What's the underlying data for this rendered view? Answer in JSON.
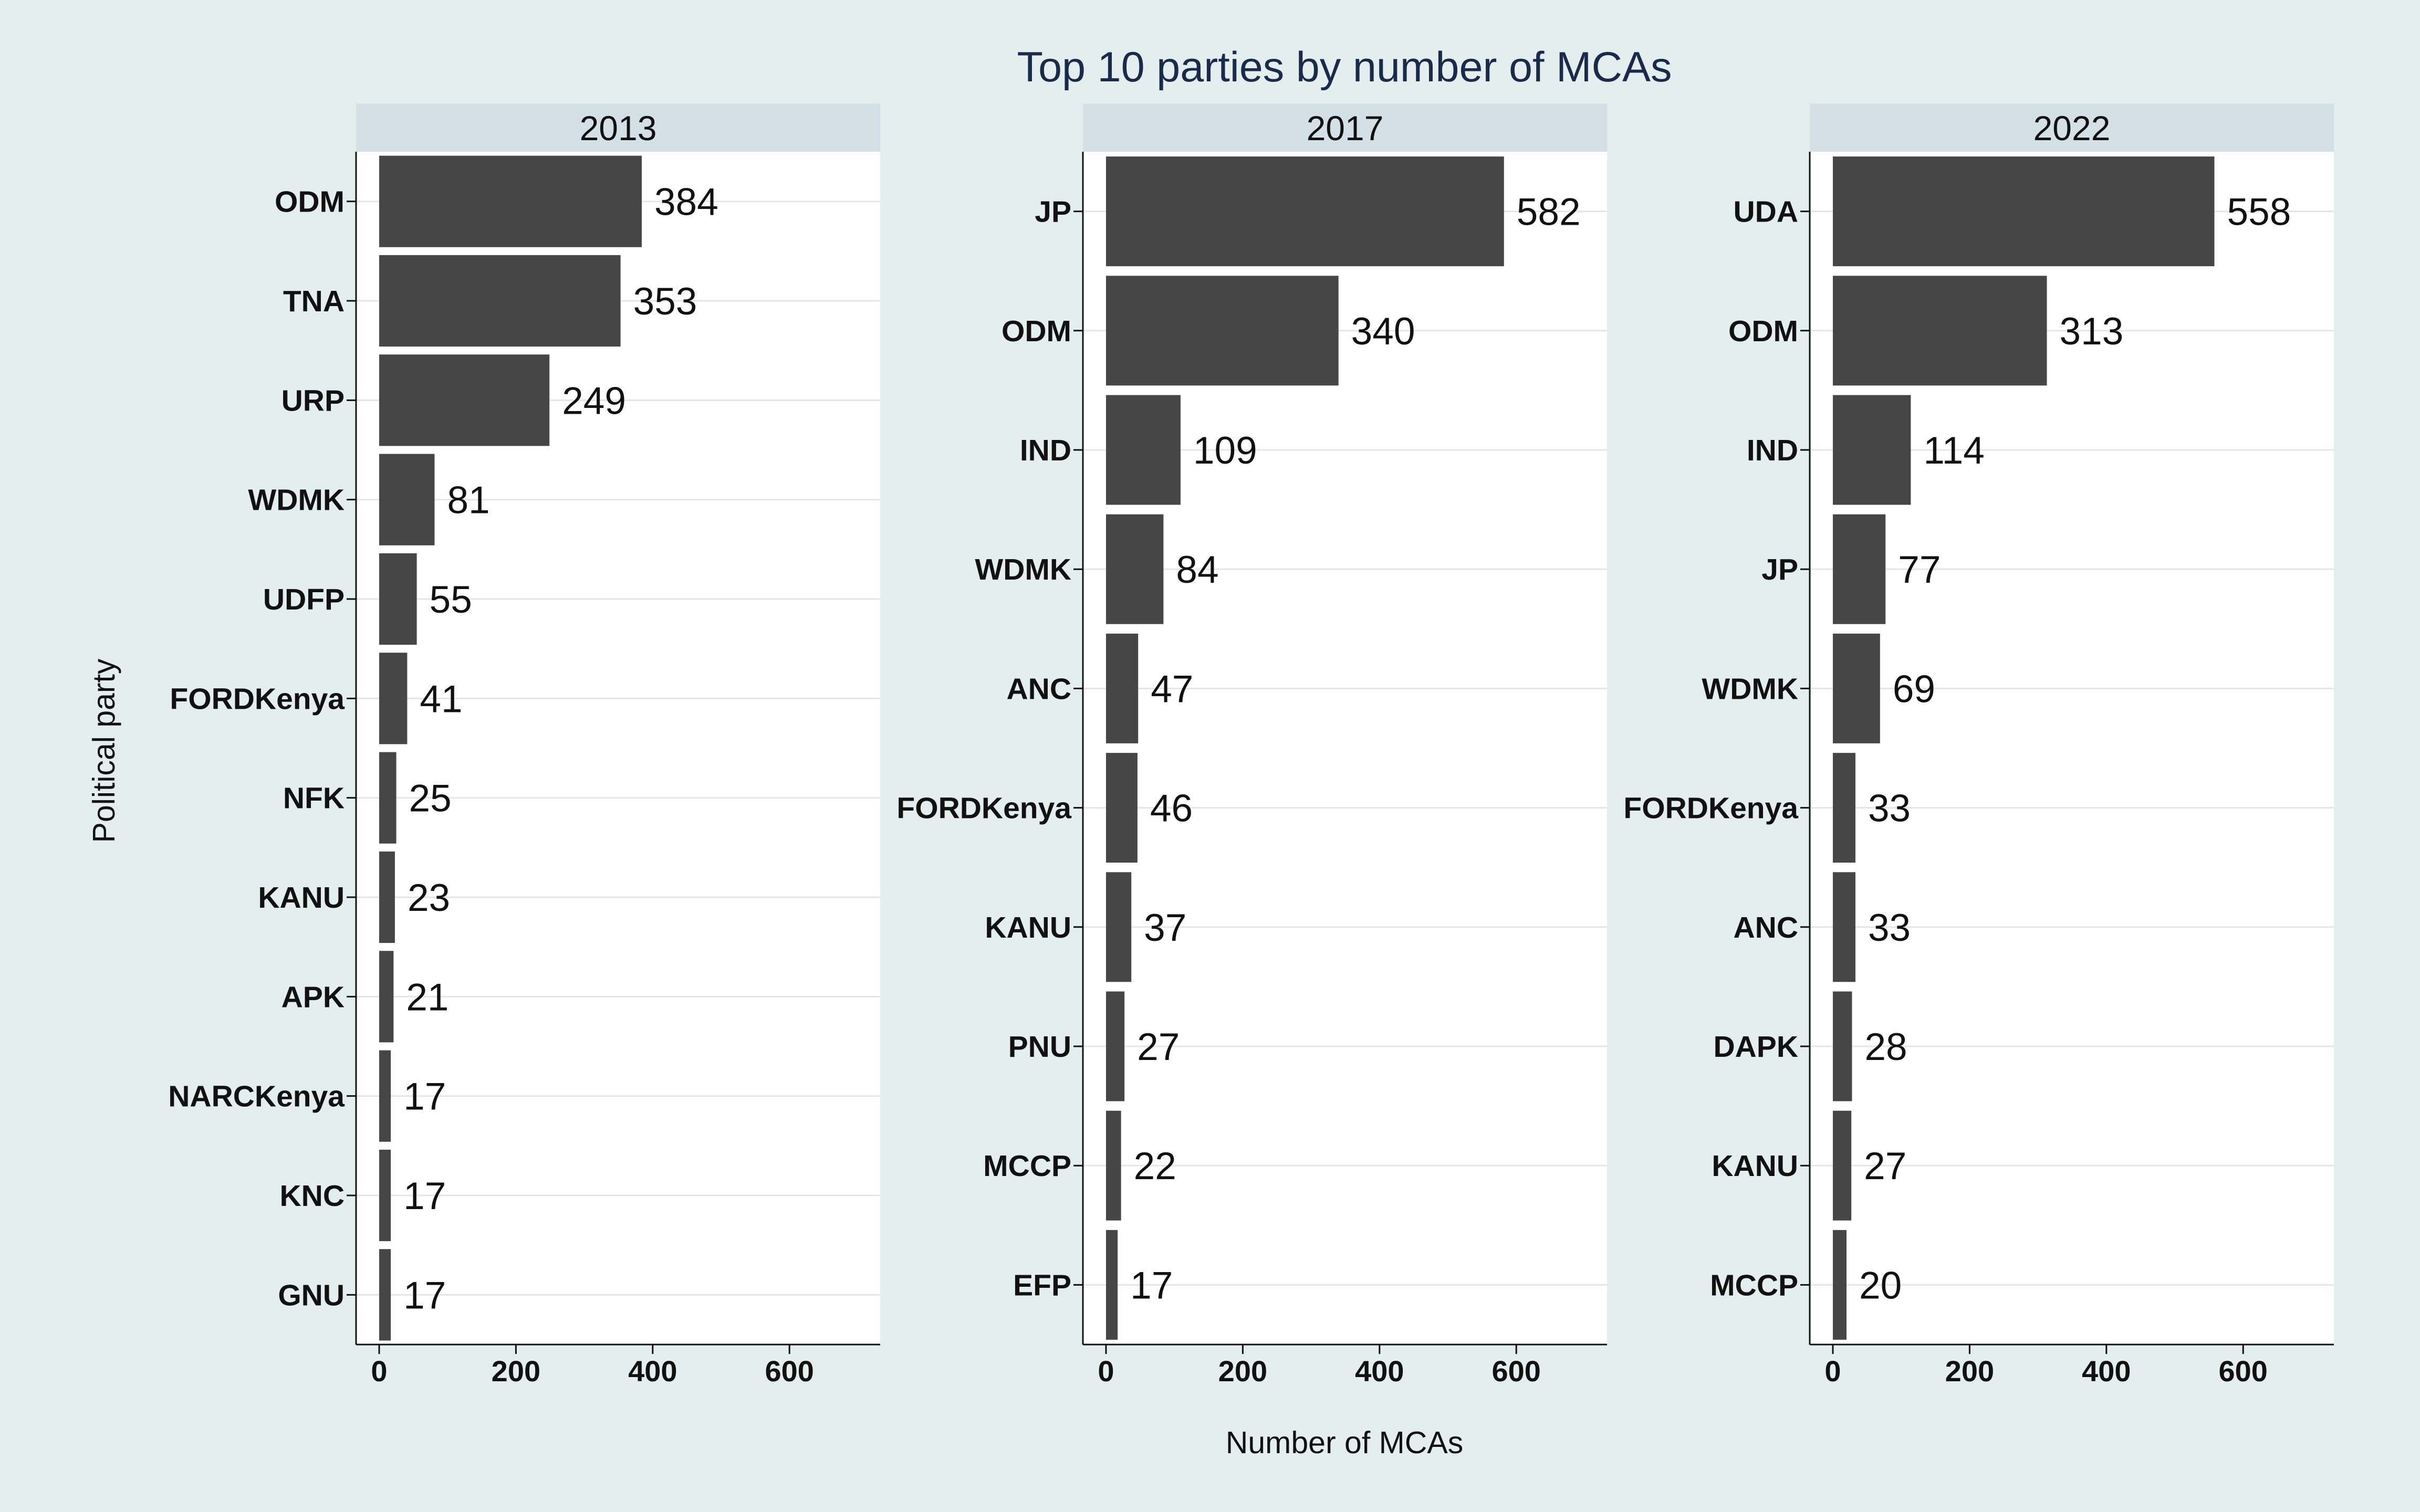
{
  "chart_data": {
    "type": "bar",
    "orientation": "horizontal",
    "title": "Top 10 parties by number of MCAs",
    "xlabel": "Number of MCAs",
    "ylabel": "Political party",
    "xlim": [
      0,
      730
    ],
    "xticks": [
      0,
      200,
      400,
      600
    ],
    "grid": true,
    "colors": {
      "bar": "#464646",
      "strip": "#d3e1e6",
      "panel": "#ffffff",
      "background": "#e5eeee",
      "gridline": "#e6e6e6"
    },
    "facets": [
      {
        "label": "2013",
        "categories": [
          "ODM",
          "TNA",
          "URP",
          "WDMK",
          "UDFP",
          "FORDKenya",
          "NFK",
          "KANU",
          "APK",
          "NARCKenya",
          "KNC",
          "GNU"
        ],
        "values": [
          384,
          353,
          249,
          81,
          55,
          41,
          25,
          23,
          21,
          17,
          17,
          17
        ]
      },
      {
        "label": "2017",
        "categories": [
          "JP",
          "ODM",
          "IND",
          "WDMK",
          "ANC",
          "FORDKenya",
          "KANU",
          "PNU",
          "MCCP",
          "EFP"
        ],
        "values": [
          582,
          340,
          109,
          84,
          47,
          46,
          37,
          27,
          22,
          17
        ]
      },
      {
        "label": "2022",
        "categories": [
          "UDA",
          "ODM",
          "IND",
          "JP",
          "WDMK",
          "FORDKenya",
          "ANC",
          "DAPK",
          "KANU",
          "MCCP"
        ],
        "values": [
          558,
          313,
          114,
          77,
          69,
          33,
          33,
          28,
          27,
          20
        ]
      }
    ]
  }
}
